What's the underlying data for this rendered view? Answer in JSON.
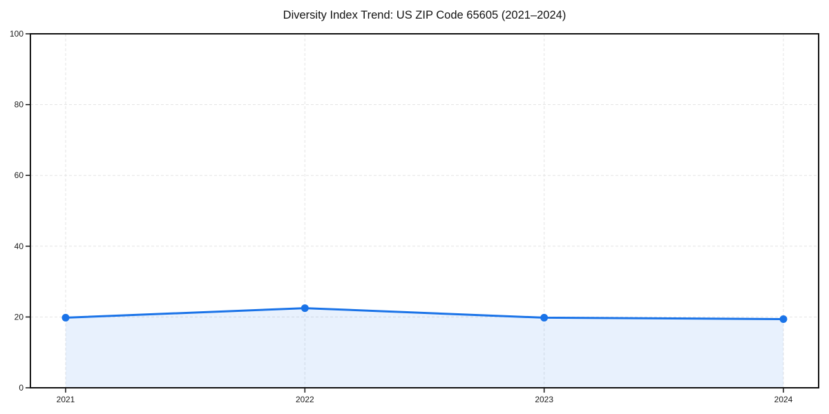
{
  "chart_data": {
    "type": "area",
    "title": "Diversity Index Trend: US ZIP Code 65605 (2021–2024)",
    "categories": [
      "2021",
      "2022",
      "2023",
      "2024"
    ],
    "values": [
      19.8,
      22.5,
      19.8,
      19.4
    ],
    "xlabel": "",
    "ylabel": "",
    "ylim": [
      0,
      100
    ],
    "yticks": [
      0,
      20,
      40,
      60,
      80,
      100
    ],
    "ytick_labels": [
      "0",
      "20",
      "40",
      "60",
      "80",
      "100"
    ],
    "grid": true,
    "grid_style": "dashed",
    "legend": false,
    "marker": "circle",
    "colors": {
      "line": "#1a73e8",
      "marker": "#1a73e8",
      "area_fill": "rgba(26,115,232,0.10)",
      "gridline": "#e3e3e3",
      "spine": "#111111",
      "tick_label": "#1a1a1a",
      "background": "#ffffff"
    }
  }
}
